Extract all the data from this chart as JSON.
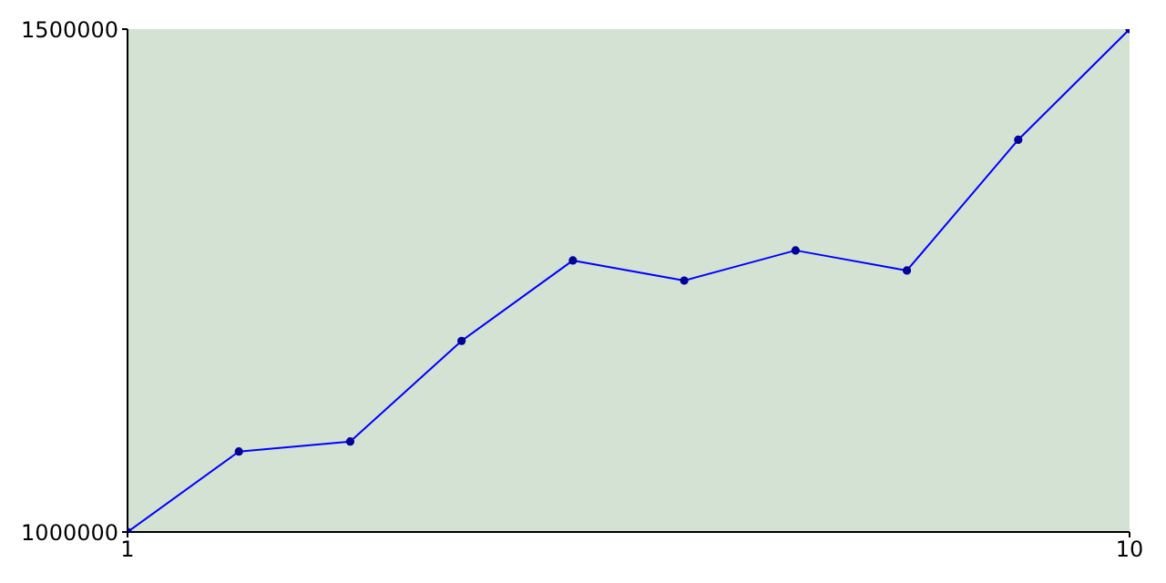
{
  "chart_data": {
    "type": "line",
    "x": [
      1,
      2,
      3,
      4,
      5,
      6,
      7,
      8,
      9,
      10
    ],
    "series": [
      {
        "color": "#0000ff",
        "values": [
          1000000,
          1080000,
          1090000,
          1190000,
          1270000,
          1250000,
          1280000,
          1260000,
          1390000,
          1500000
        ]
      }
    ],
    "xlim": [
      1,
      10
    ],
    "xticks": [
      1,
      10
    ],
    "ylim": [
      1000000,
      1500000
    ],
    "yticks": [
      1000000,
      1500000
    ],
    "grid": false,
    "legend": false,
    "marker": "circle",
    "line_style": "solid"
  }
}
